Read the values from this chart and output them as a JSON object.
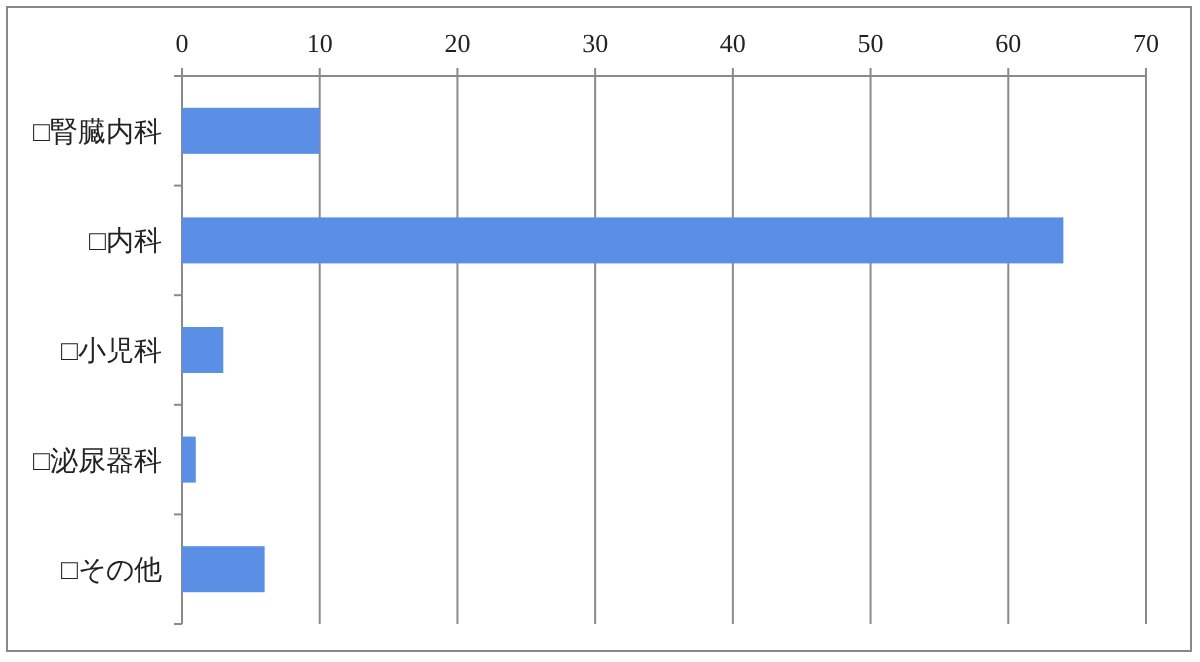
{
  "chart_data": {
    "type": "bar",
    "orientation": "horizontal",
    "categories": [
      "□腎臓内科",
      "□内科",
      "□小児科",
      "□泌尿器科",
      "□その他"
    ],
    "values": [
      10,
      64,
      3,
      1,
      6
    ],
    "color": "#5b8fe6",
    "xlim": [
      0,
      70
    ],
    "xticks": [
      0,
      10,
      20,
      30,
      40,
      50,
      60,
      70
    ],
    "grid": "x"
  }
}
